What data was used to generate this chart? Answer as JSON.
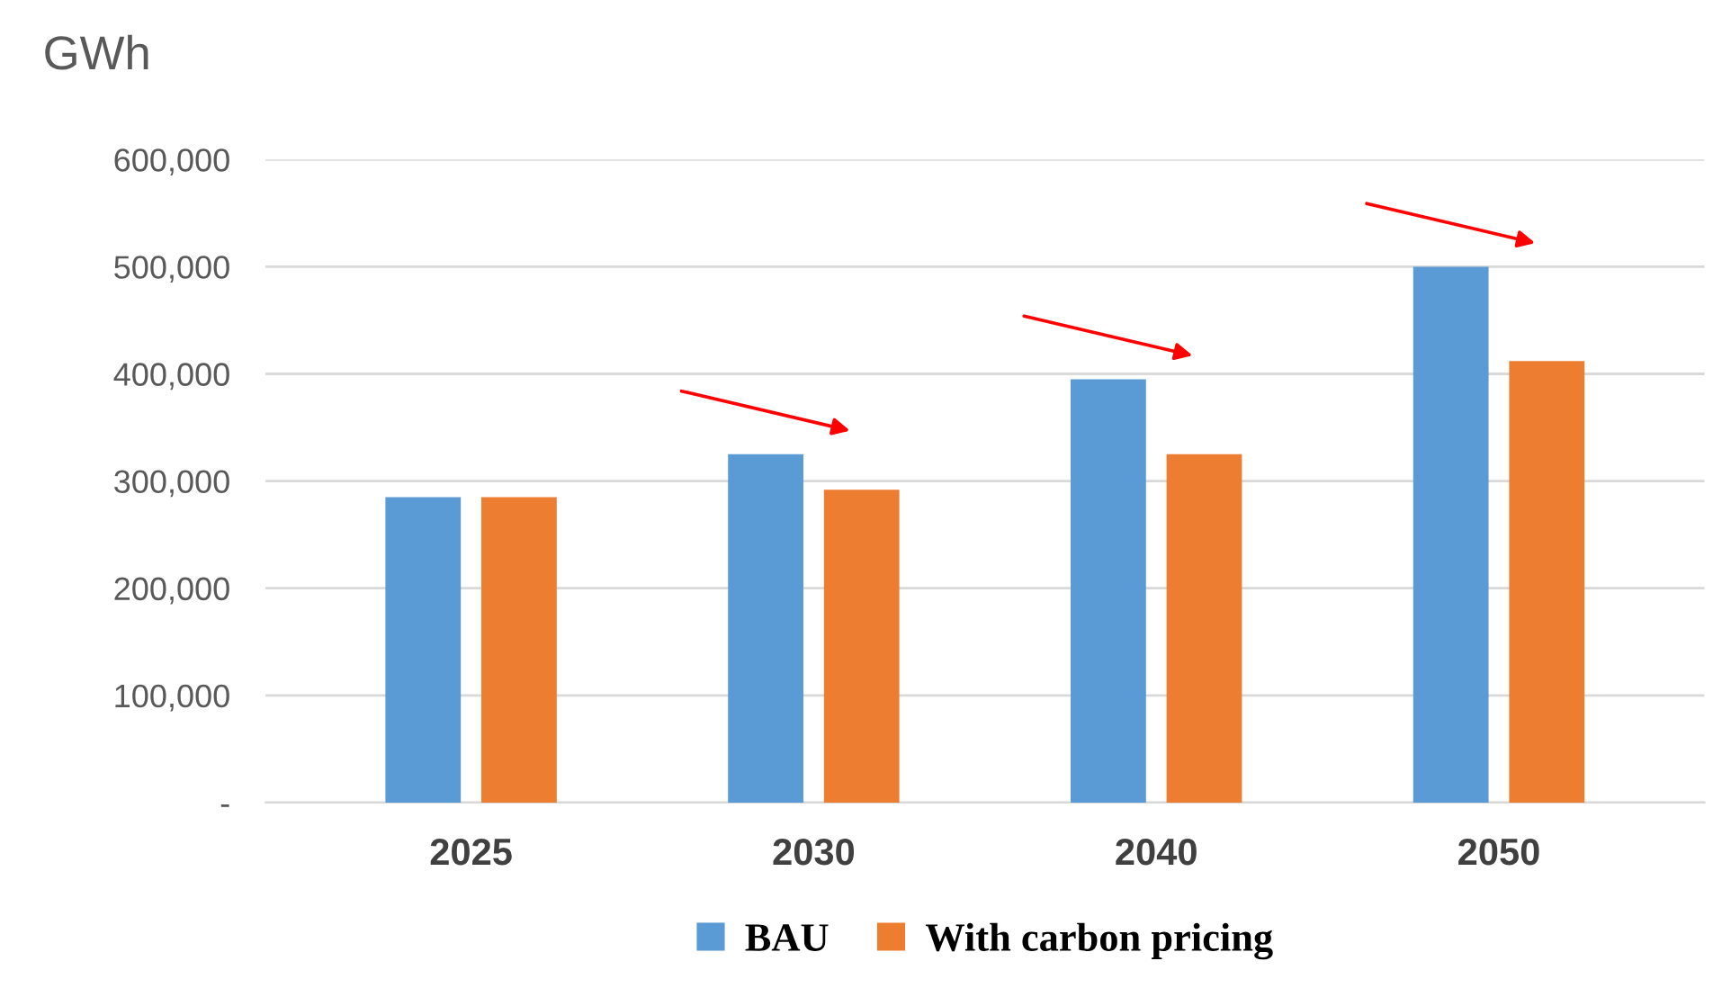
{
  "chart_data": {
    "type": "bar",
    "ylabel": "GWh",
    "categories": [
      "2025",
      "2030",
      "2040",
      "2050"
    ],
    "series": [
      {
        "name": "BAU",
        "color": "#5b9bd5",
        "values": [
          285000,
          325000,
          395000,
          500000
        ]
      },
      {
        "name": "With carbon pricing",
        "color": "#ed7d31",
        "values": [
          285000,
          292000,
          325000,
          412000
        ]
      }
    ],
    "ylim": [
      0,
      600000
    ],
    "yticks": [
      {
        "value": 0,
        "label": "-"
      },
      {
        "value": 100000,
        "label": "100,000"
      },
      {
        "value": 200000,
        "label": "200,000"
      },
      {
        "value": 300000,
        "label": "300,000"
      },
      {
        "value": 400000,
        "label": "400,000"
      },
      {
        "value": 500000,
        "label": "500,000"
      },
      {
        "value": 600000,
        "label": "600,000"
      }
    ],
    "grid": "y",
    "legend": "bottom"
  }
}
